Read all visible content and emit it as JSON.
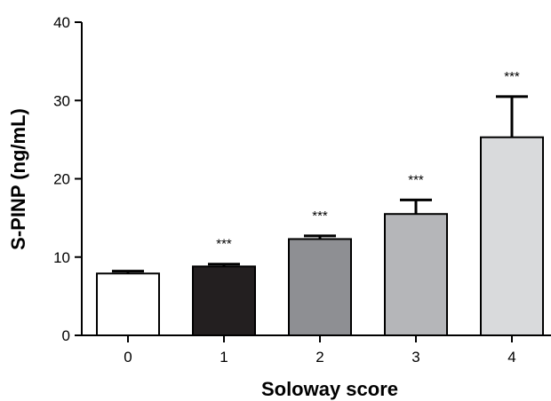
{
  "chart_data": {
    "type": "bar",
    "categories": [
      "0",
      "1",
      "2",
      "3",
      "4"
    ],
    "values": [
      7.9,
      8.8,
      12.3,
      15.5,
      25.3
    ],
    "errors": [
      0.3,
      0.3,
      0.4,
      1.8,
      5.2
    ],
    "annotations": [
      "",
      "***",
      "***",
      "***",
      "***"
    ],
    "colors": [
      "#ffffff",
      "#231f20",
      "#8e8f93",
      "#b5b6b9",
      "#d9dadc"
    ],
    "xlabel": "Soloway score",
    "ylabel": "S-PINP (ng/mL)",
    "ylim": [
      0,
      40
    ],
    "yticks": [
      0,
      10,
      20,
      30,
      40
    ],
    "grid": false
  }
}
